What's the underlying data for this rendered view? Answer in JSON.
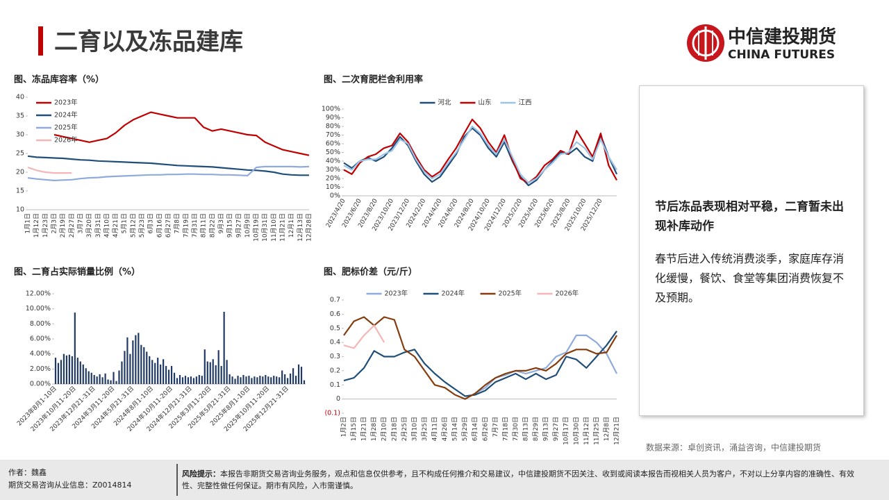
{
  "header": {
    "title": "二育以及冻品建库",
    "logo_name": "中信建投期货",
    "logo_sub": "CHINA FUTURES"
  },
  "chart_data": [
    {
      "type": "line",
      "title": "图、冻品库容率（%）",
      "legend": "upper left",
      "ylim": [
        10,
        40
      ],
      "yticks": [
        10,
        15,
        20,
        25,
        30,
        35,
        40
      ],
      "categories": [
        "1月1日",
        "1月12日",
        "1月23日",
        "2月3日",
        "2月19日",
        "2月27日",
        "3月7日",
        "3月20日",
        "3月31日",
        "4月10日",
        "4月21日",
        "5月1日",
        "5月12日",
        "5月23日",
        "6月3日",
        "6月16日",
        "6月27日",
        "7月8日",
        "7月19日",
        "7月31日",
        "8月11日",
        "8月22日",
        "9月3日",
        "9月15日",
        "9月27日",
        "10月9日",
        "10月19日",
        "10月31日",
        "11月10日",
        "11月21日",
        "12月1日",
        "12月13日",
        "12月28日"
      ],
      "series": [
        {
          "name": "2023年",
          "color": "#c00000",
          "values": [
            null,
            null,
            null,
            30,
            29.5,
            29,
            28.5,
            28,
            28.5,
            29,
            30.5,
            32.5,
            34,
            35,
            36,
            35.5,
            35,
            34.5,
            34.5,
            34.5,
            32,
            31,
            31.5,
            31,
            30.5,
            30,
            29.8,
            28,
            27,
            26,
            25.5,
            25,
            24.5
          ]
        },
        {
          "name": "2024年",
          "color": "#1f4e79",
          "values": [
            24.3,
            24,
            23.9,
            23.8,
            23.7,
            23.5,
            23.3,
            23.2,
            23,
            22.9,
            22.8,
            22.7,
            22.6,
            22.5,
            22.4,
            22.2,
            22,
            21.8,
            21.7,
            21.6,
            21.5,
            21.4,
            21.2,
            21,
            20.8,
            20.6,
            20.5,
            20.3,
            20,
            19.5,
            19.3,
            19.2,
            19.2
          ]
        },
        {
          "name": "2025年",
          "color": "#8faadc",
          "values": [
            18.5,
            18.2,
            18,
            17.8,
            17.9,
            18,
            18.3,
            18.5,
            18.6,
            18.8,
            18.9,
            19,
            19.1,
            19.2,
            19.3,
            19.3,
            19.4,
            19.4,
            19.5,
            19.5,
            19.4,
            19.4,
            19.3,
            19.3,
            19.2,
            19.1,
            21.3,
            21.5,
            21.5,
            21.5,
            21.5,
            21.4,
            21.5
          ]
        },
        {
          "name": "2026年",
          "color": "#f4b6b6",
          "values": [
            21.3,
            20.5,
            20,
            19.8,
            19.8,
            19.8,
            null,
            null,
            null,
            null,
            null,
            null,
            null,
            null,
            null,
            null,
            null,
            null,
            null,
            null,
            null,
            null,
            null,
            null,
            null,
            null,
            null,
            null,
            null,
            null,
            null,
            null,
            null
          ]
        }
      ]
    },
    {
      "type": "line",
      "title": "图、二次育肥栏舍利用率",
      "legend": "upper center",
      "ylim": [
        0,
        100
      ],
      "yticks": [
        {
          "value": 0,
          "label": "0%"
        },
        {
          "value": 10,
          "label": "10%"
        },
        {
          "value": 20,
          "label": "20%"
        },
        {
          "value": 30,
          "label": "30%"
        },
        {
          "value": 40,
          "label": "40%"
        },
        {
          "value": 50,
          "label": "50%"
        },
        {
          "value": 60,
          "label": "60%"
        },
        {
          "value": 70,
          "label": "70%"
        },
        {
          "value": 80,
          "label": "80%"
        },
        {
          "value": 90,
          "label": "90%"
        },
        {
          "value": 100,
          "label": "100%"
        }
      ],
      "categories": [
        "2023/4/20",
        null,
        "2023/6/20",
        null,
        "2023/8/20",
        null,
        "2023/10/20",
        null,
        "2023/12/20",
        null,
        "2024/2/20",
        null,
        "2024/4/20",
        null,
        "2024/6/20",
        null,
        "2024/8/20",
        null,
        "2024/10/20",
        null,
        "2024/12/20",
        null,
        "2025/2/20",
        null,
        "2025/4/20",
        null,
        "2025/6/20",
        null,
        "2025/8/20",
        null,
        "2025/10/20",
        null,
        "2025/12/20",
        null,
        null
      ],
      "series": [
        {
          "name": "河北",
          "color": "#1f4e79",
          "values": [
            38,
            32,
            40,
            44,
            40,
            45,
            55,
            68,
            58,
            40,
            25,
            16,
            22,
            35,
            48,
            68,
            78,
            70,
            55,
            45,
            62,
            40,
            22,
            12,
            18,
            30,
            40,
            50,
            48,
            55,
            45,
            40,
            70,
            45,
            25
          ]
        },
        {
          "name": "山东",
          "color": "#c00000",
          "values": [
            30,
            25,
            38,
            45,
            48,
            55,
            58,
            72,
            62,
            45,
            30,
            22,
            28,
            42,
            55,
            72,
            88,
            78,
            62,
            50,
            70,
            42,
            20,
            15,
            22,
            35,
            42,
            52,
            48,
            75,
            60,
            45,
            72,
            35,
            18
          ]
        },
        {
          "name": "江西",
          "color": "#9dc3e6",
          "values": [
            35,
            30,
            40,
            42,
            42,
            48,
            52,
            65,
            60,
            42,
            28,
            20,
            25,
            38,
            50,
            65,
            80,
            72,
            58,
            48,
            65,
            45,
            25,
            15,
            20,
            30,
            38,
            48,
            50,
            62,
            55,
            42,
            65,
            45,
            30
          ]
        }
      ]
    },
    {
      "type": "bar",
      "title": "图、二育占实际销量比例（%）",
      "color": "#1f3864",
      "ylim": [
        0,
        12
      ],
      "yticks": [
        {
          "value": 0,
          "label": "0.00%"
        },
        {
          "value": 2,
          "label": "2.00%"
        },
        {
          "value": 4,
          "label": "4.00%"
        },
        {
          "value": 6,
          "label": "6.00%"
        },
        {
          "value": 8,
          "label": "8.00%"
        },
        {
          "value": 10,
          "label": "10.00%"
        },
        {
          "value": 12,
          "label": "12.00%"
        }
      ],
      "categories": [
        "2023年8月1-10日",
        null,
        null,
        null,
        null,
        null,
        null,
        "2023年10月11-20日",
        null,
        null,
        null,
        null,
        null,
        null,
        "2023年12月21-31日",
        null,
        null,
        null,
        null,
        null,
        null,
        "2024年3月11-20日",
        null,
        null,
        null,
        null,
        null,
        null,
        "2024年5月21-31日",
        null,
        null,
        null,
        null,
        null,
        null,
        "2024年8月1-10日",
        null,
        null,
        null,
        null,
        null,
        null,
        "2024年10月11-20日",
        null,
        null,
        null,
        null,
        null,
        null,
        "2024年12月21-31日",
        null,
        null,
        null,
        null,
        null,
        null,
        "2025年3月11-20日",
        null,
        null,
        null,
        null,
        null,
        null,
        "2025年5月21-31日",
        null,
        null,
        null,
        null,
        null,
        null,
        "2025年8月1-10日",
        null,
        null,
        null,
        null,
        null,
        null,
        "2025年10月11-20日",
        null,
        null,
        null,
        null,
        null,
        null,
        "2025年12月21-31日",
        null,
        null,
        null,
        null,
        null,
        null
      ],
      "values": [
        3.5,
        2.8,
        3.2,
        4.0,
        3.8,
        3.9,
        3.7,
        9.5,
        3.5,
        3.0,
        2.6,
        2.1,
        1.7,
        1.5,
        1.2,
        1.0,
        1.3,
        0.9,
        1.4,
        0.6,
        0.5,
        1.6,
        0.4,
        1.8,
        3.0,
        4.4,
        6.2,
        4.0,
        5.8,
        6.5,
        6.8,
        5.2,
        4.9,
        4.3,
        3.7,
        3.2,
        2.8,
        3.5,
        2.6,
        3.3,
        2.4,
        1.9,
        2.4,
        1.5,
        0.8,
        1.2,
        0.9,
        1.1,
        0.9,
        1.0,
        0.8,
        1.0,
        1.2,
        1.1,
        4.6,
        3.0,
        2.9,
        3.3,
        2.5,
        4.5,
        2.4,
        9.6,
        3.2,
        1.3,
        1.0,
        0.7,
        1.1,
        0.9,
        1.2,
        1.0,
        1.1,
        0.8,
        1.0,
        0.9,
        1.1,
        1.0,
        1.2,
        1.0,
        0.9,
        1.1,
        1.0,
        0.9,
        1.8,
        1.3,
        0.8,
        1.4,
        2.1,
        1.1,
        2.6,
        2.3,
        0.5
      ]
    },
    {
      "type": "line",
      "title": "图、肥标价差（元/斤）",
      "legend": "upper center",
      "ylim": [
        -0.1,
        0.7
      ],
      "yticks": [
        {
          "value": -0.1,
          "label": "(0.1)"
        },
        0,
        0.1,
        0.2,
        0.3,
        0.4,
        0.5,
        0.6,
        0.7
      ],
      "categories": [
        "1月2日",
        "1月15日",
        "1月21日",
        "1月28日",
        "2月10日",
        "2月18日",
        "2月25日",
        "3月10日",
        "3月25日",
        "4月11日",
        "4月26日",
        "5月14日",
        "5月29日",
        "6月14日",
        "6月26日",
        "7月7日",
        "7月18日",
        "7月30日",
        "8月13日",
        "8月29日",
        "9月13日",
        "9月27日",
        "10月17日",
        "10月30日",
        "11月12日",
        "11月25日",
        "12月8日",
        "12月21日"
      ],
      "series": [
        {
          "name": "2023年",
          "color": "#8faadc",
          "values": [
            null,
            null,
            null,
            null,
            null,
            null,
            null,
            null,
            null,
            null,
            null,
            null,
            null,
            0.04,
            0.08,
            0.15,
            0.17,
            0.2,
            0.18,
            0.2,
            0.22,
            0.3,
            0.33,
            0.45,
            0.45,
            0.4,
            0.32,
            0.18
          ]
        },
        {
          "name": "2024年",
          "color": "#1f4e79",
          "values": [
            0.13,
            0.15,
            0.22,
            0.34,
            0.3,
            0.3,
            0.33,
            0.35,
            0.25,
            0.18,
            0.12,
            0.07,
            0.02,
            0.03,
            0.06,
            0.12,
            0.15,
            0.18,
            0.14,
            0.18,
            0.14,
            0.17,
            0.3,
            0.28,
            0.22,
            0.3,
            0.38,
            0.48
          ]
        },
        {
          "name": "2025年",
          "color": "#843c0c",
          "values": [
            0.45,
            0.55,
            0.58,
            0.52,
            0.58,
            0.56,
            0.35,
            0.3,
            0.2,
            0.1,
            0.08,
            0.03,
            0,
            0.04,
            0.1,
            0.15,
            0.18,
            0.2,
            0.2,
            0.22,
            0.2,
            0.25,
            0.32,
            0.35,
            0.35,
            0.32,
            0.33,
            0.45
          ]
        },
        {
          "name": "2026年",
          "color": "#f4b6b6",
          "values": [
            0.38,
            0.36,
            0.45,
            0.52,
            0.4,
            null,
            null,
            null,
            null,
            null,
            null,
            null,
            null,
            null,
            null,
            null,
            null,
            null,
            null,
            null,
            null,
            null,
            null,
            null,
            null,
            null,
            null,
            null
          ]
        }
      ]
    }
  ],
  "callout": {
    "title": "节后冻品表现相对平稳，二育暂未出现补库动作",
    "body": "春节后进入传统消费淡季，家庭库存消化缓慢，餐饮、食堂等集团消费恢复不及预期。"
  },
  "source": "数据来源：卓创资讯，涌益咨询，中信建投期货",
  "footer": {
    "author": "作者：魏鑫",
    "license": "期货交易咨询从业信息：Z0014814",
    "risk_label": "风险提示：",
    "risk_text": "本报告非期货交易咨询业务服务，观点和信息仅供参考，且不构成任何推介和交易建议，中信建投期货不因关注、收到或阅读本报告而视相关人员为客户，不对以上分享内容的准确性、有效性、完整性做任何保证。期市有风险，入市需谨慎。"
  }
}
